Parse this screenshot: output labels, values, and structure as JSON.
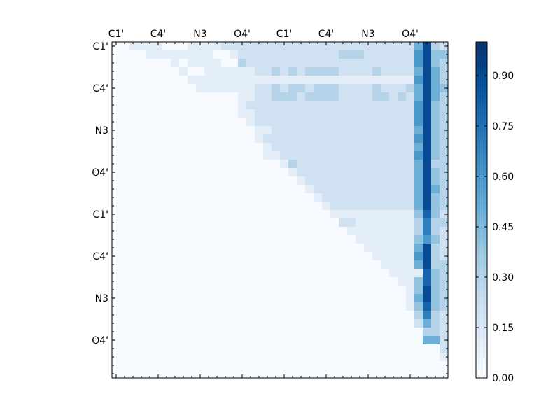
{
  "chart_data": {
    "type": "heatmap",
    "title": "",
    "xlabel": "",
    "ylabel": "",
    "n": 40,
    "x_tick_labels": [
      "C1'",
      "C4'",
      "N3",
      "O4'",
      "C1'",
      "C4'",
      "N3",
      "O4'"
    ],
    "y_tick_labels": [
      "C1'",
      "C4'",
      "N3",
      "O4'",
      "C1'",
      "C4'",
      "N3",
      "O4'"
    ],
    "label_stride": 5,
    "value_range": [
      0,
      1
    ],
    "colormap": "Blues",
    "colorbar": {
      "tick_values": [
        0.0,
        0.15,
        0.3,
        0.45,
        0.6,
        0.75,
        0.9
      ],
      "tick_labels": [
        "0.00",
        "0.15",
        "0.30",
        "0.45",
        "0.60",
        "0.75",
        "0.90"
      ]
    },
    "matrix_rows": [
      "0011110001111222222222222222222222225932",
      "0000111111110012222222222223332222226944",
      "0000000101111003222222222222222222226943",
      "0000000010011111122323233332222322225953",
      "0000000001111111111111111111111111116953",
      "0000000000111111122323323332222322235954",
      "0000000000000001122333233332222332325953",
      "0000000000000001222222222222222222226943",
      "0000000000000001122222222222222222226943",
      "0000000000000000122222222222222222226943",
      "0000000000000000011222222222222222225943",
      "0000000000000000012222222222222222226943",
      "0000000000000000001222222222222222225943",
      "0000000000000000001122222222222222226943",
      "0000000000000000000013222222222222225933",
      "0000000000000000000001222222222222225943",
      "0000000000000000000000122222222222225943",
      "0000000000000000000000012222222222225953",
      "0000000000000000000000001222222222225943",
      "0000000000000000000000000122222222225943",
      "0000000000000000000000000011111111114842",
      "0000000000000000000000000002211111113733",
      "0000000000000000000000000000111111113732",
      "0000000000000000000000000000011111114642",
      "0000000000000000000000000000001111115932",
      "0000000000000000000000000000000111116932",
      "0000000000000000000000000000000011115933",
      "0000000000000000000000000000000001111843",
      "0000000000000000000000000000000000114843",
      "0000000000000000000000000000000000014943",
      "0000000000000000000000000000000000015943",
      "0000000000000000000000000000000000014843",
      "0000000000000000000000000000000000003732",
      "0000000000000000000000000000000000002532",
      "0000000000000000000000000000000000000332",
      "0000000000000000000000000000000000000552",
      "0000000000000000000000000000000000000002",
      "0000000000000000000000000000000000000001",
      "0000000000000000000000000000000000000000",
      "0000000000000000000000000000000000000000"
    ],
    "matrix_scale": 0.1
  }
}
